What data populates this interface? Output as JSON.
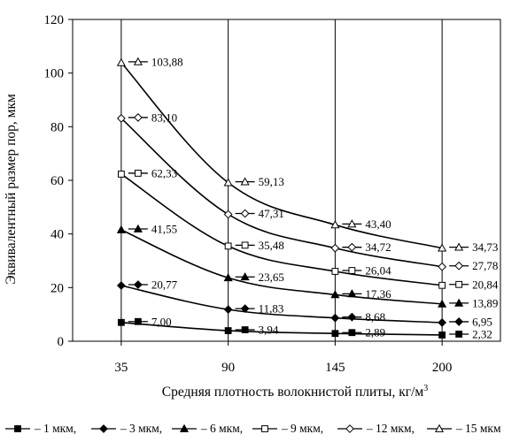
{
  "chart_data": {
    "type": "line",
    "title": "",
    "xlabel": "Средняя плотность волокнистой  плиты, кг/м",
    "xlabel_sup": "3",
    "ylabel": "Эквивалентный размер пор, мкм",
    "categories": [
      "35",
      "90",
      "145",
      "200"
    ],
    "x": [
      35,
      90,
      145,
      200
    ],
    "ylim": [
      0,
      120
    ],
    "yticks": [
      "0",
      "20",
      "40",
      "60",
      "80",
      "100",
      "120"
    ],
    "grid": "vertical",
    "legend_position": "bottom",
    "series": [
      {
        "name": "1 мкм,",
        "marker": "square-filled",
        "values": [
          7.0,
          3.94,
          2.89,
          2.32
        ],
        "labels": [
          "7,00",
          "3,94",
          "2,89",
          "2,32"
        ]
      },
      {
        "name": "3 мкм,",
        "marker": "diamond-filled",
        "values": [
          20.77,
          11.83,
          8.68,
          6.95
        ],
        "labels": [
          "20,77",
          "11,83",
          "8,68",
          "6,95"
        ]
      },
      {
        "name": "6 мкм,",
        "marker": "triangle-filled",
        "values": [
          41.55,
          23.65,
          17.36,
          13.89
        ],
        "labels": [
          "41,55",
          "23,65",
          "17,36",
          "13,89"
        ]
      },
      {
        "name": "9 мкм,",
        "marker": "square-open",
        "values": [
          62.33,
          35.48,
          26.04,
          20.84
        ],
        "labels": [
          "62,33",
          "35,48",
          "26,04",
          "20,84"
        ]
      },
      {
        "name": "12 мкм,",
        "marker": "diamond-open",
        "values": [
          83.1,
          47.31,
          34.72,
          27.78
        ],
        "labels": [
          "83,10",
          "47,31",
          "34,72",
          "27,78"
        ]
      },
      {
        "name": "15 мкм",
        "marker": "triangle-open",
        "values": [
          103.88,
          59.13,
          43.4,
          34.73
        ],
        "labels": [
          "103,88",
          "59,13",
          "43,40",
          "34,73"
        ]
      }
    ]
  }
}
